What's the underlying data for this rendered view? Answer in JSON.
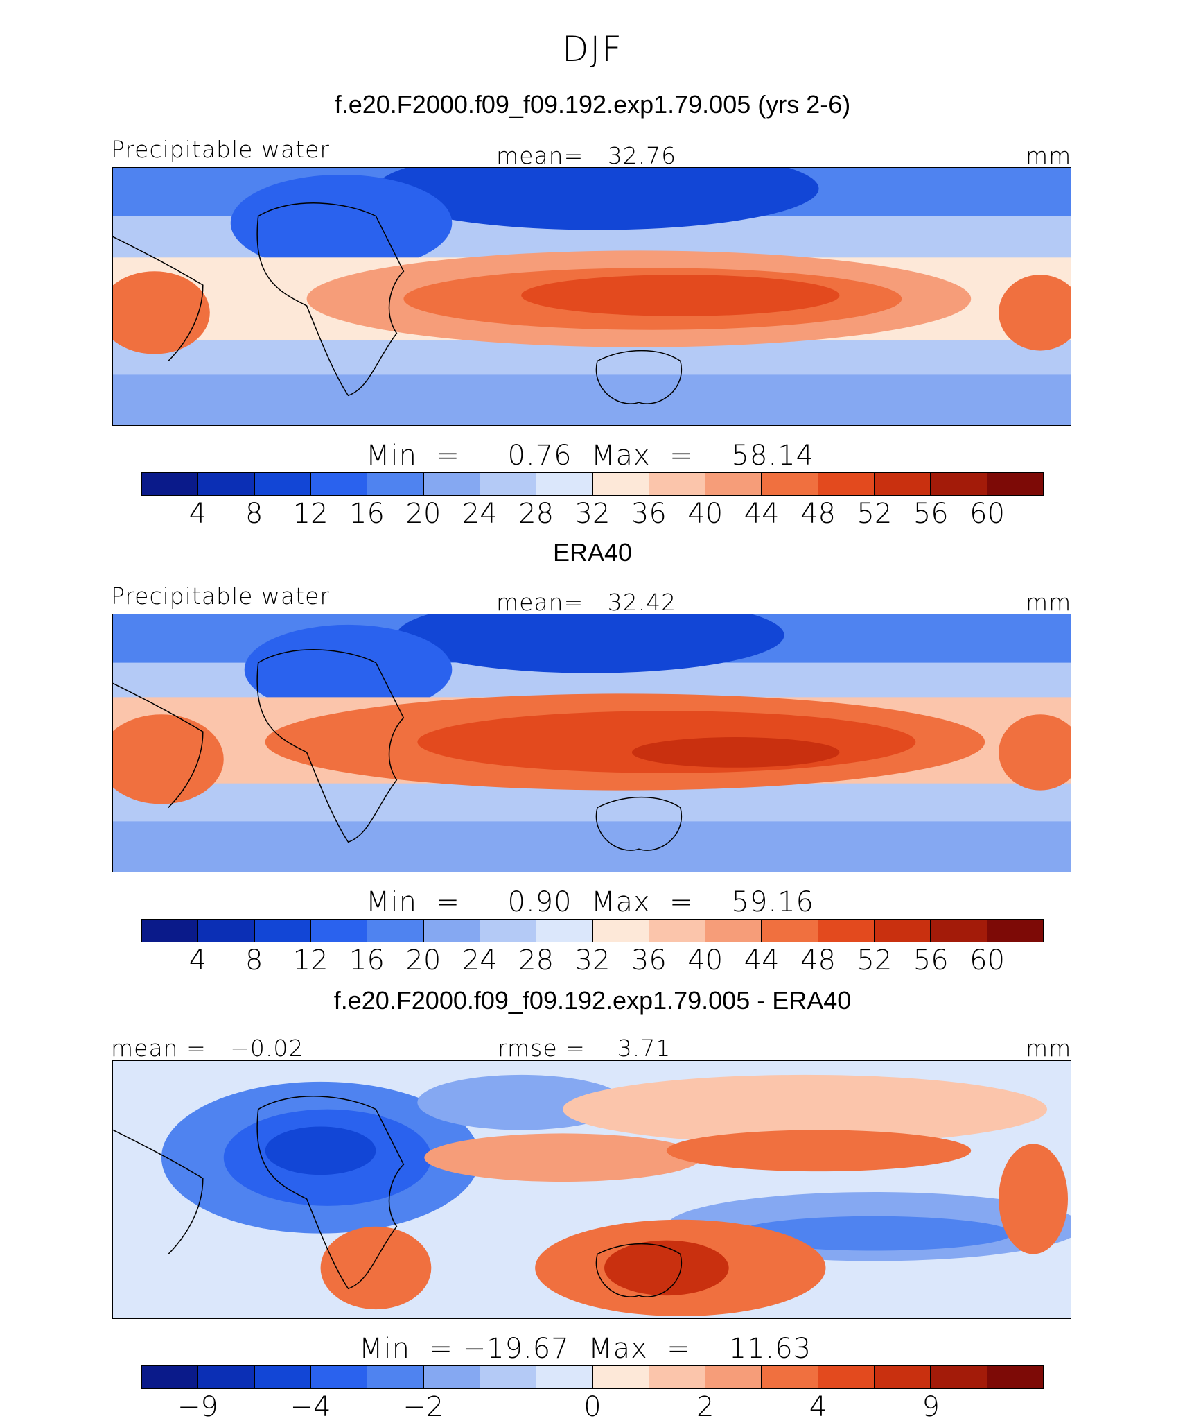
{
  "title": "DJF",
  "colors": {
    "palette": [
      "#0a1a8a",
      "#0b2fb5",
      "#1246d6",
      "#2a62ee",
      "#4f83f0",
      "#85a8f2",
      "#b4caf6",
      "#dbe7fb",
      "#fde8d8",
      "#fbc5ab",
      "#f69d79",
      "#f0703f",
      "#e34a1e",
      "#c9300f",
      "#a31b09",
      "#7d0a06"
    ],
    "ocean_bg": "#b4caf6"
  },
  "panels": [
    {
      "title": "f.e20.F2000.f09_f09.192.exp1.79.005 (yrs 2-6)",
      "left_label": "Precipitable water",
      "center_label": "mean=   32.76",
      "right_label": "mm",
      "minmax": "Min  =     0.76  Max  =    58.14",
      "ticks": [
        "4",
        "8",
        "12",
        "16",
        "20",
        "24",
        "28",
        "32",
        "36",
        "40",
        "44",
        "48",
        "52",
        "56",
        "60"
      ],
      "min": 0.76,
      "max": 58.14,
      "mean": 32.76
    },
    {
      "title": "ERA40",
      "left_label": "Precipitable water",
      "center_label": "mean=   32.42",
      "right_label": "mm",
      "minmax": "Min  =     0.90  Max  =    59.16",
      "ticks": [
        "4",
        "8",
        "12",
        "16",
        "20",
        "24",
        "28",
        "32",
        "36",
        "40",
        "44",
        "48",
        "52",
        "56",
        "60"
      ],
      "min": 0.9,
      "max": 59.16,
      "mean": 32.42
    },
    {
      "title": "f.e20.F2000.f09_f09.192.exp1.79.005 - ERA40",
      "left_label": "mean =   −0.02",
      "center_label": "rmse =    3.71",
      "right_label": "mm",
      "minmax": "Min  = −19.67  Max  =    11.63",
      "ticks": [
        "−9",
        "−4",
        "−2",
        "0",
        "2",
        "4",
        "9"
      ],
      "min": -19.67,
      "max": 11.63,
      "mean": -0.02,
      "rmse": 3.71
    }
  ]
}
